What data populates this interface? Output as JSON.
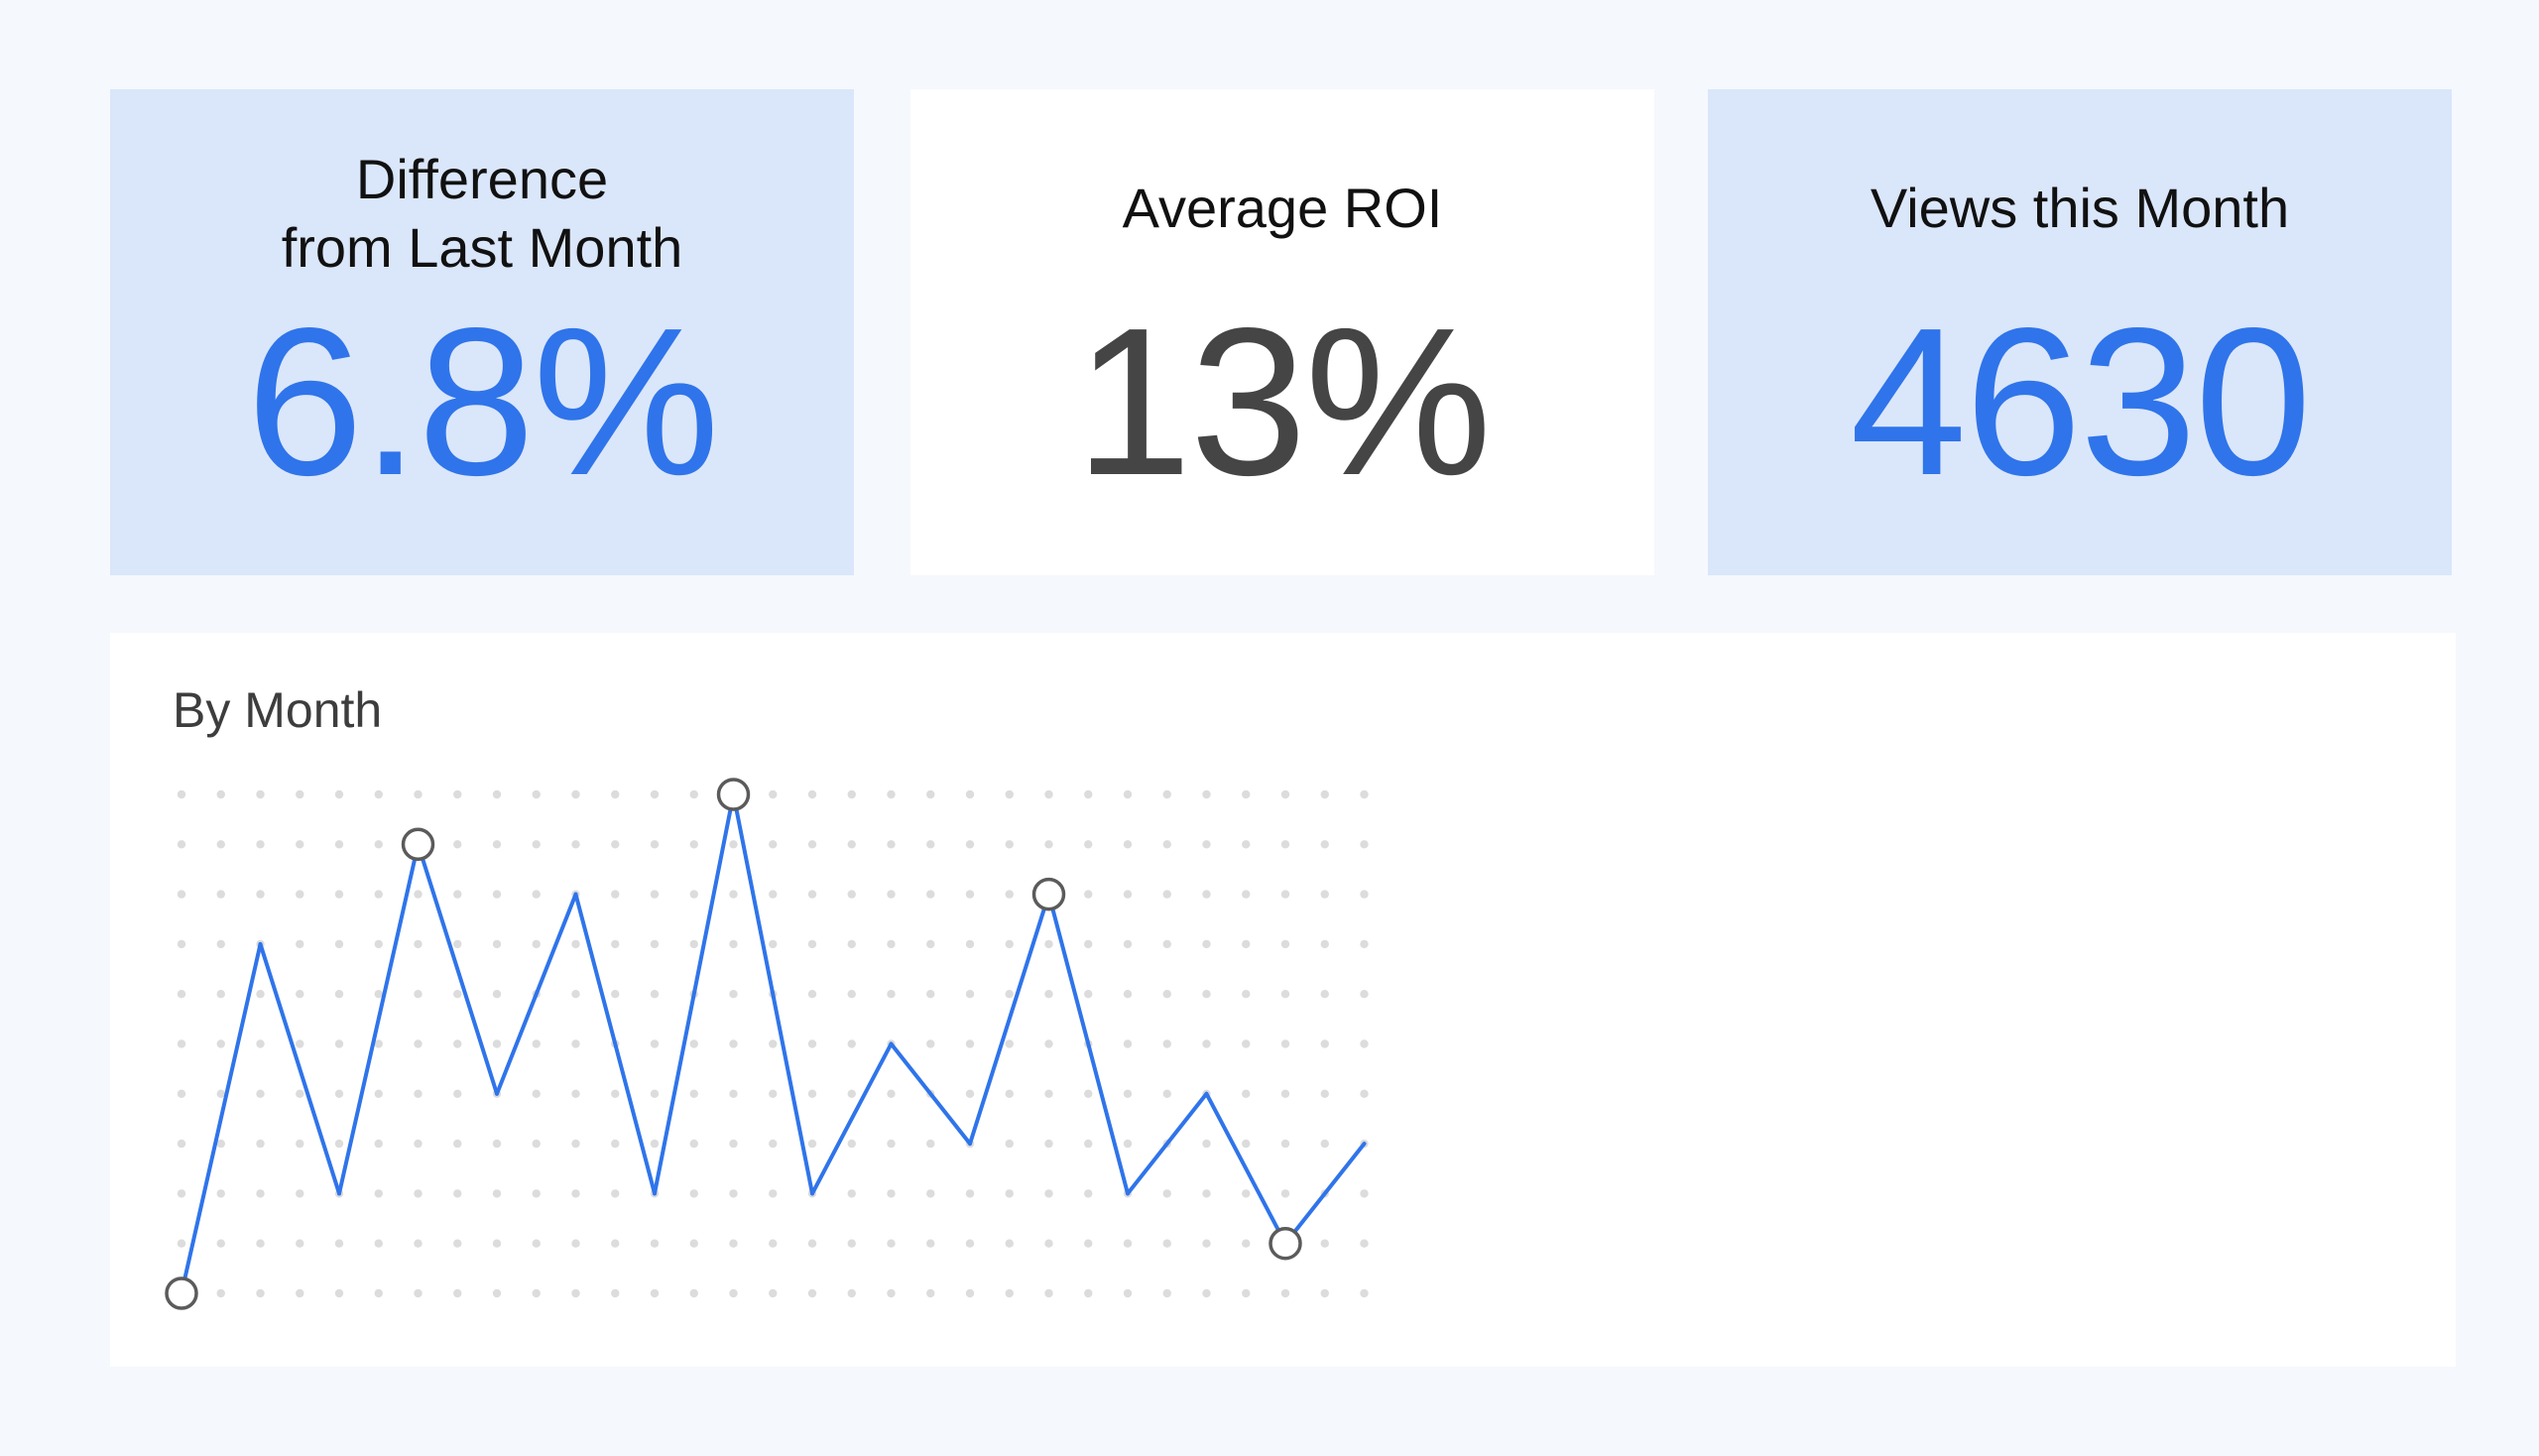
{
  "accent_color": "#2f74ea",
  "value_text_color": "#454545",
  "kpis": [
    {
      "title": "Difference\nfrom Last Month",
      "value": "6.8%"
    },
    {
      "title": "Average ROI",
      "value": "13%"
    },
    {
      "title": "Views this Month",
      "value": "4630"
    }
  ],
  "chart_data": {
    "type": "line",
    "title": "By Month",
    "xlabel": "",
    "ylabel": "",
    "grid": "dotted",
    "legend": "none",
    "ylim": [
      0,
      10
    ],
    "series": [
      {
        "values": [
          0,
          7,
          2,
          9,
          4,
          8,
          2,
          10,
          2,
          5,
          3,
          8,
          2,
          4,
          1,
          3
        ],
        "highlighted_indices": [
          0,
          3,
          7,
          11,
          14
        ]
      }
    ]
  }
}
